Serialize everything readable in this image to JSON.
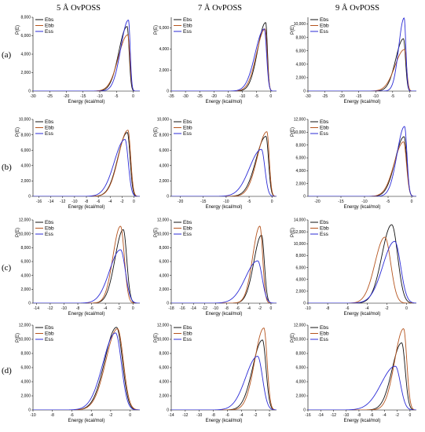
{
  "figure": {
    "column_titles": [
      "5 Å OvPOSS",
      "7 Å OvPOSS",
      "9 Å OvPOSS"
    ],
    "row_labels": [
      "(a)",
      "(b)",
      "(c)",
      "(d)"
    ],
    "colors": {
      "Ebs": "#111111",
      "Ebb": "#b5541e",
      "Ess": "#2b2bd6"
    }
  },
  "chart_data": [
    {
      "type": "line",
      "row": 0,
      "col": 0,
      "xlabel": "Energy (kcal/mol)",
      "ylabel": "P(E)",
      "xlim": [
        -30,
        2
      ],
      "ylim": [
        0,
        8000
      ],
      "xticks": [
        -30,
        -25,
        -20,
        -15,
        -10,
        -5,
        0
      ],
      "yticks": [
        0,
        2000,
        4000,
        6000,
        8000
      ],
      "ytick_labels": [
        "0",
        "2,000",
        "4,000",
        "6,000",
        "8,000"
      ],
      "legend_position": "top-left",
      "series": [
        {
          "name": "Ebs",
          "peak_x": -1.8,
          "peak_y": 7000,
          "left_width": 2.5,
          "right_width": 0.6
        },
        {
          "name": "Ebb",
          "peak_x": -1.6,
          "peak_y": 6100,
          "left_width": 2.8,
          "right_width": 0.6
        },
        {
          "name": "Ess",
          "peak_x": -1.4,
          "peak_y": 7700,
          "left_width": 2.3,
          "right_width": 0.5
        }
      ]
    },
    {
      "type": "line",
      "row": 0,
      "col": 1,
      "xlabel": "Energy (kcal/mol)",
      "ylabel": "P(E)",
      "xlim": [
        -35,
        2
      ],
      "ylim": [
        0,
        7000
      ],
      "xticks": [
        -35,
        -30,
        -25,
        -20,
        -15,
        -10,
        -5,
        0
      ],
      "yticks": [
        0,
        2000,
        4000,
        6000
      ],
      "ytick_labels": [
        "0",
        "2,000",
        "4,000",
        "6,000"
      ],
      "legend_position": "top-left",
      "series": [
        {
          "name": "Ebs",
          "peak_x": -1.8,
          "peak_y": 6500,
          "left_width": 2.8,
          "right_width": 0.6
        },
        {
          "name": "Ebb",
          "peak_x": -2.0,
          "peak_y": 5900,
          "left_width": 3.0,
          "right_width": 0.7
        },
        {
          "name": "Ess",
          "peak_x": -2.3,
          "peak_y": 5900,
          "left_width": 3.2,
          "right_width": 0.8
        }
      ]
    },
    {
      "type": "line",
      "row": 0,
      "col": 2,
      "xlabel": "Energy (kcal/mol)",
      "ylabel": "P(E)",
      "xlim": [
        -30,
        2
      ],
      "ylim": [
        0,
        11000
      ],
      "xticks": [
        -30,
        -25,
        -20,
        -15,
        -10,
        -5,
        0
      ],
      "yticks": [
        0,
        2000,
        4000,
        6000,
        8000,
        10000
      ],
      "ytick_labels": [
        "0",
        "2,000",
        "4,000",
        "6,000",
        "8,000",
        "10,000"
      ],
      "legend_position": "top-left",
      "series": [
        {
          "name": "Ebs",
          "peak_x": -1.8,
          "peak_y": 7800,
          "left_width": 2.3,
          "right_width": 0.6
        },
        {
          "name": "Ebb",
          "peak_x": -1.5,
          "peak_y": 6200,
          "left_width": 2.8,
          "right_width": 0.6
        },
        {
          "name": "Ess",
          "peak_x": -1.6,
          "peak_y": 10900,
          "left_width": 1.6,
          "right_width": 0.5
        }
      ]
    },
    {
      "type": "line",
      "row": 1,
      "col": 0,
      "xlabel": "Energy (kcal/mol)",
      "ylabel": "P(E)",
      "xlim": [
        -17,
        1
      ],
      "ylim": [
        0,
        10000
      ],
      "xticks": [
        -16,
        -14,
        -12,
        -10,
        -8,
        -6,
        -4,
        -2,
        0
      ],
      "yticks": [
        0,
        2000,
        4000,
        6000,
        8000,
        10000
      ],
      "ytick_labels": [
        "0",
        "2,000",
        "4,000",
        "6,000",
        "8,000",
        "10,000"
      ],
      "legend_position": "top-left",
      "series": [
        {
          "name": "Ebs",
          "peak_x": -1.1,
          "peak_y": 8300,
          "left_width": 1.6,
          "right_width": 0.45
        },
        {
          "name": "Ebb",
          "peak_x": -1.0,
          "peak_y": 8600,
          "left_width": 1.6,
          "right_width": 0.45
        },
        {
          "name": "Ess",
          "peak_x": -1.5,
          "peak_y": 7400,
          "left_width": 1.8,
          "right_width": 0.55
        }
      ]
    },
    {
      "type": "line",
      "row": 1,
      "col": 1,
      "xlabel": "Energy (kcal/mol)",
      "ylabel": "P(E)",
      "xlim": [
        -22,
        1
      ],
      "ylim": [
        0,
        10000
      ],
      "xticks": [
        -20,
        -15,
        -10,
        -5,
        0
      ],
      "yticks": [
        0,
        2000,
        4000,
        6000,
        8000,
        10000
      ],
      "ytick_labels": [
        "0",
        "2,000",
        "4,000",
        "6,000",
        "8,000",
        "10,000"
      ],
      "legend_position": "top-left",
      "series": [
        {
          "name": "Ebs",
          "peak_x": -1.3,
          "peak_y": 7800,
          "left_width": 2.2,
          "right_width": 0.55
        },
        {
          "name": "Ebb",
          "peak_x": -1.1,
          "peak_y": 8400,
          "left_width": 2.1,
          "right_width": 0.5
        },
        {
          "name": "Ess",
          "peak_x": -2.3,
          "peak_y": 6100,
          "left_width": 2.6,
          "right_width": 0.75
        }
      ]
    },
    {
      "type": "line",
      "row": 1,
      "col": 2,
      "xlabel": "Energy (kcal/mol)",
      "ylabel": "P(E)",
      "xlim": [
        -22,
        1
      ],
      "ylim": [
        0,
        12000
      ],
      "xticks": [
        -20,
        -15,
        -10,
        -5,
        0
      ],
      "yticks": [
        0,
        2000,
        4000,
        6000,
        8000,
        10000,
        12000
      ],
      "ytick_labels": [
        "0",
        "2,000",
        "4,000",
        "6,000",
        "8,000",
        "10,000",
        "12,000"
      ],
      "legend_position": "top-left",
      "series": [
        {
          "name": "Ebs",
          "peak_x": -1.6,
          "peak_y": 9300,
          "left_width": 1.9,
          "right_width": 0.55
        },
        {
          "name": "Ebb",
          "peak_x": -1.7,
          "peak_y": 8500,
          "left_width": 2.0,
          "right_width": 0.6
        },
        {
          "name": "Ess",
          "peak_x": -1.5,
          "peak_y": 10900,
          "left_width": 1.6,
          "right_width": 0.5
        }
      ]
    },
    {
      "type": "line",
      "row": 2,
      "col": 0,
      "xlabel": "Energy (kcal/mol)",
      "ylabel": "P(E)",
      "xlim": [
        -14.5,
        1
      ],
      "ylim": [
        0,
        12000
      ],
      "xticks": [
        -14,
        -12,
        -10,
        -8,
        -6,
        -4,
        -2,
        0
      ],
      "yticks": [
        0,
        2000,
        4000,
        6000,
        8000,
        10000,
        12000
      ],
      "ytick_labels": [
        "0",
        "2,000",
        "4,000",
        "6,000",
        "8,000",
        "10,000",
        "12,000"
      ],
      "legend_position": "top-left",
      "series": [
        {
          "name": "Ebs",
          "peak_x": -1.4,
          "peak_y": 10600,
          "left_width": 1.2,
          "right_width": 0.5
        },
        {
          "name": "Ebb",
          "peak_x": -1.8,
          "peak_y": 11100,
          "left_width": 1.1,
          "right_width": 0.55
        },
        {
          "name": "Ess",
          "peak_x": -1.8,
          "peak_y": 7700,
          "left_width": 1.6,
          "right_width": 0.7
        }
      ]
    },
    {
      "type": "line",
      "row": 2,
      "col": 1,
      "xlabel": "Energy (kcal/mol)",
      "ylabel": "P(E)",
      "xlim": [
        -18,
        1
      ],
      "ylim": [
        0,
        12000
      ],
      "xticks": [
        -18,
        -16,
        -14,
        -12,
        -10,
        -8,
        -6,
        -4,
        -2,
        0
      ],
      "yticks": [
        0,
        2000,
        4000,
        6000,
        8000,
        10000,
        12000
      ],
      "ytick_labels": [
        "0",
        "2,000",
        "4,000",
        "6,000",
        "8,000",
        "10,000",
        "12,000"
      ],
      "legend_position": "top-left",
      "series": [
        {
          "name": "Ebs",
          "peak_x": -1.7,
          "peak_y": 9800,
          "left_width": 1.4,
          "right_width": 0.5
        },
        {
          "name": "Ebb",
          "peak_x": -2.0,
          "peak_y": 11100,
          "left_width": 1.3,
          "right_width": 0.5
        },
        {
          "name": "Ess",
          "peak_x": -2.4,
          "peak_y": 6100,
          "left_width": 2.2,
          "right_width": 0.8
        }
      ]
    },
    {
      "type": "line",
      "row": 2,
      "col": 2,
      "xlabel": "Energy (kcal/mol)",
      "ylabel": "P(E)",
      "xlim": [
        -10,
        1
      ],
      "ylim": [
        0,
        14000
      ],
      "xticks": [
        -10,
        -8,
        -6,
        -4,
        -2,
        0
      ],
      "yticks": [
        0,
        2000,
        4000,
        6000,
        8000,
        10000,
        12000,
        14000
      ],
      "ytick_labels": [
        "0",
        "2,000",
        "4,000",
        "6,000",
        "8,000",
        "10,000",
        "12,000",
        "14,000"
      ],
      "legend_position": "top-left",
      "series": [
        {
          "name": "Ebs",
          "peak_x": -1.5,
          "peak_y": 13200,
          "left_width": 1.0,
          "right_width": 0.6
        },
        {
          "name": "Ebb",
          "peak_x": -2.2,
          "peak_y": 11100,
          "left_width": 1.0,
          "right_width": 0.6
        },
        {
          "name": "Ess",
          "peak_x": -1.2,
          "peak_y": 10400,
          "left_width": 1.2,
          "right_width": 0.6
        }
      ]
    },
    {
      "type": "line",
      "row": 3,
      "col": 0,
      "xlabel": "Energy (kcal/mol)",
      "ylabel": "P(E)",
      "xlim": [
        -10,
        1
      ],
      "ylim": [
        0,
        12000
      ],
      "xticks": [
        -10,
        -8,
        -6,
        -4,
        -2,
        0
      ],
      "yticks": [
        0,
        2000,
        4000,
        6000,
        8000,
        10000,
        12000
      ],
      "ytick_labels": [
        "0",
        "2,000",
        "4,000",
        "6,000",
        "8,000",
        "10,000",
        "12,000"
      ],
      "legend_position": "top-left",
      "series": [
        {
          "name": "Ebs",
          "peak_x": -1.4,
          "peak_y": 11700,
          "left_width": 1.2,
          "right_width": 0.6
        },
        {
          "name": "Ebb",
          "peak_x": -1.3,
          "peak_y": 11500,
          "left_width": 1.2,
          "right_width": 0.6
        },
        {
          "name": "Ess",
          "peak_x": -1.5,
          "peak_y": 10900,
          "left_width": 1.3,
          "right_width": 0.6
        }
      ]
    },
    {
      "type": "line",
      "row": 3,
      "col": 1,
      "xlabel": "Energy (kcal/mol)",
      "ylabel": "P(E)",
      "xlim": [
        -14,
        1
      ],
      "ylim": [
        0,
        12000
      ],
      "xticks": [
        -14,
        -12,
        -10,
        -8,
        -6,
        -4,
        -2,
        0
      ],
      "yticks": [
        0,
        2000,
        4000,
        6000,
        8000,
        10000,
        12000
      ],
      "ytick_labels": [
        "0",
        "2,000",
        "4,000",
        "6,000",
        "8,000",
        "10,000",
        "12,000"
      ],
      "legend_position": "top-left",
      "series": [
        {
          "name": "Ebs",
          "peak_x": -1.0,
          "peak_y": 9900,
          "left_width": 1.4,
          "right_width": 0.5
        },
        {
          "name": "Ebb",
          "peak_x": -0.8,
          "peak_y": 11600,
          "left_width": 1.3,
          "right_width": 0.45
        },
        {
          "name": "Ess",
          "peak_x": -1.7,
          "peak_y": 7600,
          "left_width": 1.7,
          "right_width": 0.7
        }
      ]
    },
    {
      "type": "line",
      "row": 3,
      "col": 2,
      "xlabel": "Energy (kcal/mol)",
      "ylabel": "P(E)",
      "xlim": [
        -16,
        1
      ],
      "ylim": [
        0,
        12000
      ],
      "xticks": [
        -16,
        -14,
        -12,
        -10,
        -8,
        -6,
        -4,
        -2,
        0
      ],
      "yticks": [
        0,
        2000,
        4000,
        6000,
        8000,
        10000,
        12000
      ],
      "ytick_labels": [
        "0",
        "2,000",
        "4,000",
        "6,000",
        "8,000",
        "10,000",
        "12,000"
      ],
      "legend_position": "top-left",
      "series": [
        {
          "name": "Ebs",
          "peak_x": -1.3,
          "peak_y": 9500,
          "left_width": 1.5,
          "right_width": 0.55
        },
        {
          "name": "Ebb",
          "peak_x": -1.0,
          "peak_y": 11500,
          "left_width": 1.4,
          "right_width": 0.5
        },
        {
          "name": "Ess",
          "peak_x": -2.3,
          "peak_y": 6200,
          "left_width": 2.2,
          "right_width": 0.8
        }
      ]
    }
  ]
}
